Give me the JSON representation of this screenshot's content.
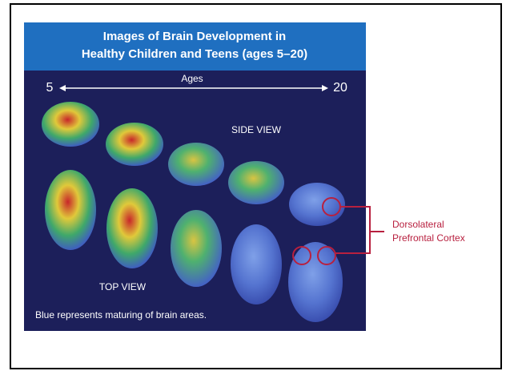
{
  "header": {
    "title_lines": [
      "Images of Brain Development in",
      "Healthy Children and Teens (ages 5–20)"
    ]
  },
  "axis": {
    "label": "Ages",
    "start": "5",
    "end": "20"
  },
  "views": {
    "side": "SIDE VIEW",
    "top": "TOP VIEW"
  },
  "caption": "Blue represents maturing of brain areas.",
  "callout": {
    "lines": [
      "Dorsolateral",
      "Prefrontal Cortex"
    ]
  }
}
